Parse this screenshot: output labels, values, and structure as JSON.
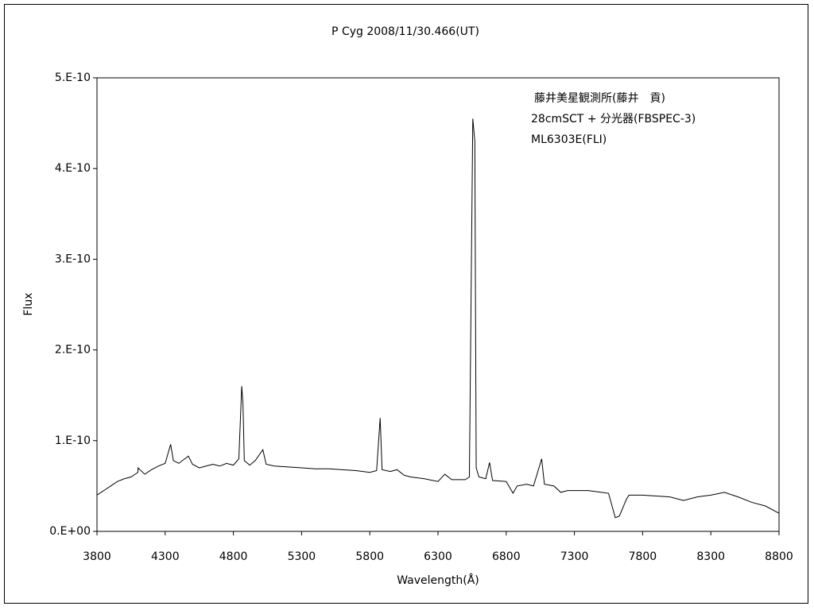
{
  "chart_data": {
    "type": "line",
    "title": "P Cyg    2008/11/30.466(UT)",
    "x_label": "Wavelength(Å)",
    "y_label": "Flux",
    "annotations": [
      "藤井美星観測所(藤井　貢)",
      "28cmSCT + 分光器(FBSPEC-3)",
      "ML6303E(FLI)"
    ],
    "color": "#000000",
    "xlim": [
      3800,
      8800
    ],
    "xticks": [
      3800,
      4300,
      4800,
      5300,
      5800,
      6300,
      6800,
      7300,
      7800,
      8300,
      8800
    ],
    "ylim": [
      0,
      5e-10
    ],
    "yticks": [
      {
        "value": 0,
        "label": "0.E+00"
      },
      {
        "value": 1e-10,
        "label": "1.E-10"
      },
      {
        "value": 2e-10,
        "label": "2.E-10"
      },
      {
        "value": 3e-10,
        "label": "3.E-10"
      },
      {
        "value": 4e-10,
        "label": "4.E-10"
      },
      {
        "value": 5e-10,
        "label": "5.E-10"
      }
    ],
    "x": [
      3800,
      3850,
      3900,
      3950,
      4000,
      4050,
      4100,
      4101,
      4150,
      4200,
      4250,
      4300,
      4340,
      4360,
      4400,
      4470,
      4500,
      4550,
      4600,
      4650,
      4700,
      4750,
      4800,
      4840,
      4861,
      4870,
      4880,
      4920,
      4960,
      5016,
      5040,
      5100,
      5200,
      5300,
      5400,
      5500,
      5600,
      5700,
      5800,
      5850,
      5876,
      5890,
      5950,
      6000,
      6050,
      6100,
      6200,
      6300,
      6350,
      6400,
      6500,
      6530,
      6555,
      6570,
      6580,
      6600,
      6650,
      6678,
      6700,
      6800,
      6850,
      6880,
      6950,
      7000,
      7060,
      7080,
      7150,
      7200,
      7250,
      7300,
      7400,
      7500,
      7550,
      7600,
      7630,
      7680,
      7700,
      7800,
      8000,
      8100,
      8200,
      8300,
      8400,
      8500,
      8600,
      8700,
      8800
    ],
    "values": [
      4e-11,
      4.5e-11,
      5e-11,
      5.5e-11,
      5.8e-11,
      6e-11,
      6.5e-11,
      7e-11,
      6.3e-11,
      6.8e-11,
      7.2e-11,
      7.5e-11,
      9.6e-11,
      7.8e-11,
      7.5e-11,
      8.3e-11,
      7.4e-11,
      7e-11,
      7.2e-11,
      7.4e-11,
      7.2e-11,
      7.5e-11,
      7.3e-11,
      8e-11,
      1.6e-10,
      1.42e-10,
      7.8e-11,
      7.3e-11,
      7.8e-11,
      9e-11,
      7.4e-11,
      7.2e-11,
      7.1e-11,
      7e-11,
      6.9e-11,
      6.9e-11,
      6.8e-11,
      6.7e-11,
      6.5e-11,
      6.7e-11,
      1.25e-10,
      6.8e-11,
      6.6e-11,
      6.8e-11,
      6.2e-11,
      6e-11,
      5.8e-11,
      5.5e-11,
      6.3e-11,
      5.7e-11,
      5.7e-11,
      6e-11,
      4.55e-10,
      4.3e-10,
      7e-11,
      6e-11,
      5.8e-11,
      7.6e-11,
      5.6e-11,
      5.5e-11,
      4.2e-11,
      5e-11,
      5.2e-11,
      5e-11,
      8e-11,
      5.2e-11,
      5e-11,
      4.3e-11,
      4.5e-11,
      4.5e-11,
      4.5e-11,
      4.3e-11,
      4.2e-11,
      1.5e-11,
      1.7e-11,
      3.5e-11,
      4e-11,
      4e-11,
      3.8e-11,
      3.4e-11,
      3.8e-11,
      4e-11,
      4.3e-11,
      3.8e-11,
      3.2e-11,
      2.8e-11,
      2e-11
    ]
  }
}
